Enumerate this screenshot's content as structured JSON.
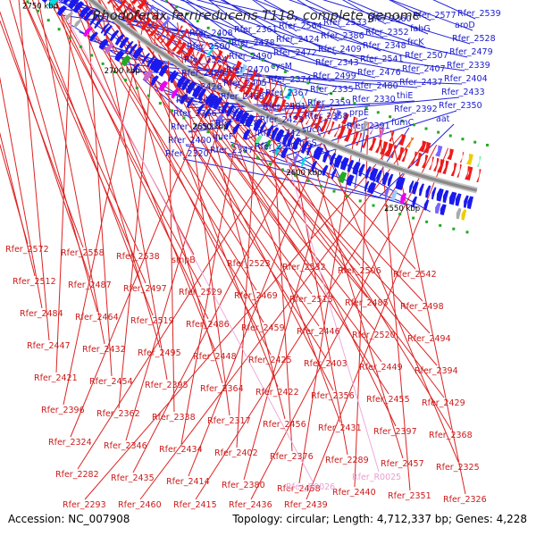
{
  "title": "Rhodoferax ferrireducens T118, complete genome",
  "footer": {
    "accession": "Accession: NC_007908",
    "topology": "Topology: circular; Length: 4,712,337 bp; Genes: 4,228"
  },
  "scale_labels": [
    "2950 kbp",
    "2900 kbp",
    "2850 kbp",
    "2800 kbp",
    "2750 kbp",
    "2700 kbp",
    "2650 kbp",
    "2600 kbp",
    "2550 kbp"
  ],
  "upper_labels": [
    "Rfer_2408",
    "Rfer_2361",
    "Rfer_2564",
    "Rfer_2533",
    "Rfer_2360",
    "Rfer_2577",
    "Rfer_2539",
    "Rfer_2500",
    "Rfer_2478",
    "Rfer_2424",
    "Rfer_2386",
    "Rfer_2352",
    "fabG",
    "aroD",
    "Rfer_2524",
    "Rfer_2490",
    "Rfer_2472",
    "Rfer_2409",
    "Rfer_2348",
    "frcK",
    "Rfer_2528",
    "Rfer_2489",
    "Rfer_2470",
    "cysM",
    "Rfer_2343",
    "Rfer_2541",
    "Rfer_2507",
    "Rfer_2479",
    "Rfer_2426",
    "Rfer_2405",
    "Rfer_2374",
    "Rfer_2499",
    "Rfer_2476",
    "Rfer_2407",
    "Rfer_2339",
    "Rfer_2491",
    "Rfer_2468",
    "Rfer_2367",
    "Rfer_2335",
    "Rfer_2480",
    "Rfer_2437",
    "Rfer_2404",
    "Rfer_2366",
    "tnaA",
    "Rfer_2401",
    "Rfer_2359",
    "Rfer_2330",
    "thiE",
    "Rfer_2433",
    "Rfer_2393",
    "Rfer_2328",
    "Rfer_2423",
    "Rfer_2358",
    "prpE",
    "Rfer_2392",
    "Rfer_2350",
    "Rfer_2400",
    "queF",
    "Rfer_2342",
    "sucA",
    "Rfer_2391",
    "fumC",
    "aat",
    "Rfer_2320",
    "Rfer_2347",
    "Rfer_2318",
    "hisS"
  ],
  "lower_labels": [
    "Rfer_2572",
    "Rfer_2558",
    "Rfer_2538",
    "smpB",
    "Rfer_2523",
    "Rfer_2532",
    "Rfer_2506",
    "Rfer_2542",
    "Rfer_2512",
    "Rfer_2487",
    "Rfer_2497",
    "Rfer_2529",
    "Rfer_2469",
    "Rfer_2513",
    "Rfer_2485",
    "Rfer_2498",
    "Rfer_2484",
    "Rfer_2464",
    "Rfer_2519",
    "Rfer_2486",
    "Rfer_2459",
    "Rfer_2446",
    "Rfer_2520",
    "Rfer_2494",
    "Rfer_2447",
    "Rfer_2432",
    "Rfer_2495",
    "Rfer_2448",
    "Rfer_2425",
    "Rfer_2403",
    "Rfer_2449",
    "Rfer_2394",
    "Rfer_2421",
    "Rfer_2454",
    "Rfer_2395",
    "Rfer_2364",
    "Rfer_2422",
    "Rfer_2356",
    "Rfer_2455",
    "Rfer_2429",
    "Rfer_2396",
    "Rfer_2362",
    "Rfer_2338",
    "Rfer_2317",
    "Rfer_2456",
    "Rfer_2431",
    "Rfer_2397",
    "Rfer_2368",
    "Rfer_2324",
    "Rfer_2346",
    "Rfer_2434",
    "Rfer_2402",
    "Rfer_2376",
    "Rfer_2289",
    "Rfer_2457",
    "Rfer_2325",
    "Rfer_2282",
    "Rfer_2435",
    "Rfer_2414",
    "Rfer_2380",
    "Rfer_2458",
    "Rfer_2440",
    "Rfer_2351",
    "Rfer_2326",
    "Rfer_2293",
    "Rfer_2460",
    "Rfer_2415",
    "Rfer_2436",
    "Rfer_2439"
  ],
  "rna_labels": [
    "Rfer_R0026",
    "Rfer_R0025"
  ],
  "colors": {
    "forward": "#1a1aee",
    "reverse": "#ee1a1a",
    "backbone": "#8a8a8a",
    "title": "#222222"
  }
}
